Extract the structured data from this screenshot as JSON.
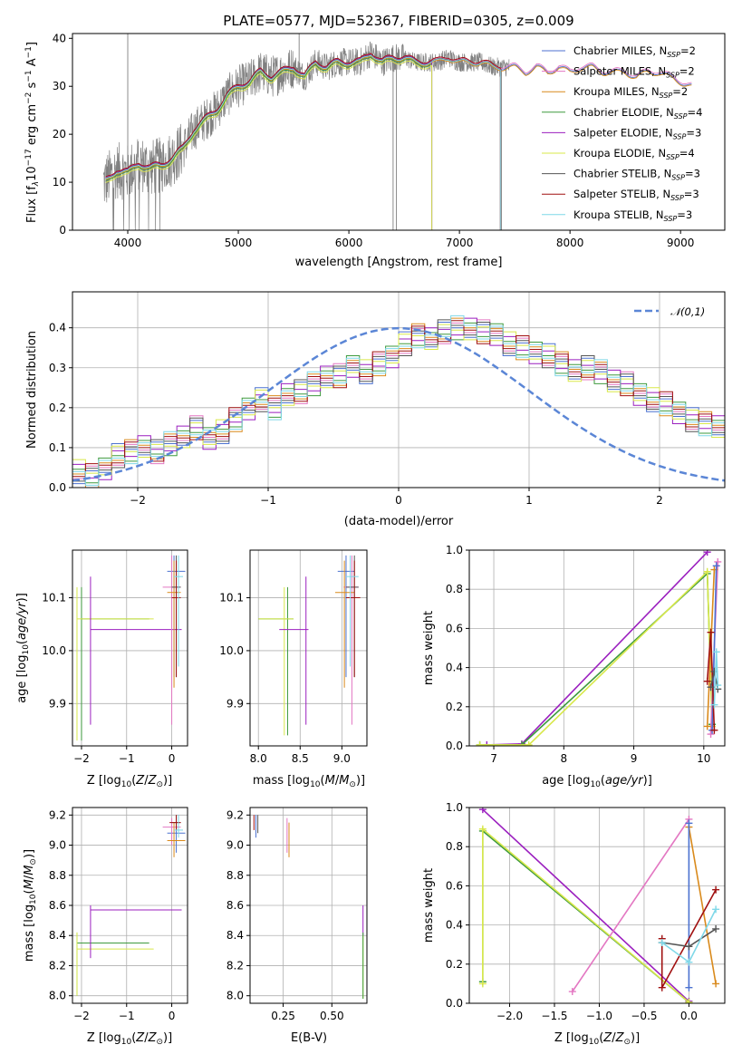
{
  "figure": {
    "title": "PLATE=0577, MJD=52367, FIBERID=0305, z=0.009"
  },
  "colors": {
    "Chabrier MILES": "#4c72d0",
    "Salpeter MILES": "#e377c2",
    "Kroupa MILES": "#d98a1c",
    "Chabrier ELODIE": "#3e9a3e",
    "Salpeter ELODIE": "#9b1fbf",
    "Kroupa ELODIE": "#d8e84a",
    "Chabrier STELIB": "#555555",
    "Salpeter STELIB": "#a01010",
    "Kroupa STELIB": "#7fd8e8",
    "data": "#808080",
    "gauss": "#5b86d6"
  },
  "chart_data": [
    {
      "id": "spectrum",
      "type": "line",
      "xlabel": "wavelength [Angstrom, rest frame]",
      "ylabel": "Flux [fλ10⁻¹⁷ erg cm⁻² s⁻¹ A⁻¹]",
      "xlim": [
        3500,
        9400
      ],
      "ylim": [
        0,
        41
      ],
      "xticks": [
        4000,
        5000,
        6000,
        7000,
        8000,
        9000
      ],
      "yticks": [
        0,
        10,
        20,
        30,
        40
      ],
      "grid": false,
      "legend_position": "top-right",
      "legend": [
        "Chabrier MILES, NSSP=2",
        "Salpeter MILES, NSSP=2",
        "Kroupa MILES, NSSP=2",
        "Chabrier ELODIE, NSSP=4",
        "Salpeter ELODIE, NSSP=3",
        "Kroupa ELODIE, NSSP=4",
        "Chabrier STELIB, NSSP=3",
        "Salpeter STELIB, NSSP=3",
        "Kroupa STELIB, NSSP=3"
      ],
      "continuum": {
        "wavelength": [
          3790,
          3900,
          4000,
          4100,
          4200,
          4300,
          4400,
          4500,
          4600,
          4700,
          4800,
          4900,
          5000,
          5100,
          5200,
          5300,
          5400,
          5500,
          5600,
          5700,
          5800,
          5900,
          6000,
          6100,
          6200,
          6300,
          6400,
          6500,
          6600,
          6700,
          6800,
          6900,
          7000,
          7100,
          7200,
          7300,
          7400,
          7500,
          7600,
          7700,
          7800,
          7900,
          8000,
          8100,
          8200,
          8300,
          8400,
          8500,
          8600,
          8700,
          8800,
          8900,
          9000,
          9100
        ],
        "flux": [
          10,
          12.5,
          12,
          14,
          13,
          13.5,
          15,
          17,
          21,
          23,
          25,
          28,
          30,
          31,
          33,
          32,
          33,
          34,
          32,
          35,
          34,
          35,
          35,
          35,
          37,
          35,
          36,
          36,
          35,
          35,
          35,
          36,
          35,
          35,
          35,
          34,
          34,
          34,
          33,
          34,
          33,
          34,
          33,
          34,
          34,
          33,
          33,
          33,
          32,
          33,
          33,
          32,
          31,
          30
        ]
      },
      "data_extent": [
        3780,
        7450
      ],
      "model_extents": {
        "ELODIE": [
          3800,
          6750
        ],
        "STELIB": [
          3800,
          7370
        ],
        "MILES": [
          3800,
          9100
        ]
      }
    },
    {
      "id": "residuals",
      "type": "step",
      "xlabel": "(data-model)/error",
      "ylabel": "Normed distribution",
      "xlim": [
        -2.5,
        2.5
      ],
      "ylim": [
        0,
        0.49
      ],
      "xticks": [
        -2,
        -1,
        0,
        1,
        2
      ],
      "yticks": [
        0.0,
        0.1,
        0.2,
        0.3,
        0.4
      ],
      "grid": true,
      "legend_position": "top-right",
      "legend": [
        "𝒩(0,1)"
      ],
      "bin_width": 0.1,
      "bin_start": -2.5,
      "histogram_base": [
        0.04,
        0.03,
        0.05,
        0.08,
        0.09,
        0.1,
        0.09,
        0.11,
        0.13,
        0.15,
        0.12,
        0.14,
        0.17,
        0.2,
        0.22,
        0.2,
        0.23,
        0.24,
        0.26,
        0.28,
        0.28,
        0.3,
        0.29,
        0.31,
        0.33,
        0.36,
        0.38,
        0.37,
        0.39,
        0.4,
        0.4,
        0.39,
        0.38,
        0.36,
        0.35,
        0.34,
        0.33,
        0.31,
        0.29,
        0.3,
        0.29,
        0.27,
        0.26,
        0.23,
        0.22,
        0.21,
        0.19,
        0.17,
        0.16,
        0.15,
        0.14,
        0.15,
        0.13,
        0.12,
        0.11,
        0.1,
        0.09,
        0.08,
        0.06,
        0.06,
        0.07,
        0.08,
        0.08,
        0.09,
        0.06,
        0.06,
        0.05,
        0.04
      ]
    },
    {
      "id": "age-vs-Z",
      "type": "errorbar",
      "xlabel": "Z [log10(Z/Z⊙)]",
      "ylabel": "age [log10(age/yr)]",
      "xlim": [
        -2.2,
        0.35
      ],
      "ylim": [
        9.82,
        10.19
      ],
      "xticks": [
        -2,
        -1,
        0
      ],
      "yticks": [
        9.9,
        10.0,
        10.1
      ],
      "grid": true,
      "points": [
        {
          "model": "Chabrier ELODIE",
          "x": -2.0,
          "xlo": -2.0,
          "xhi": -0.5,
          "y": 10.06,
          "ylo": 9.83,
          "yhi": 10.12
        },
        {
          "model": "Kroupa ELODIE",
          "x": -2.1,
          "xlo": -2.1,
          "xhi": -0.4,
          "y": 10.06,
          "ylo": 9.83,
          "yhi": 10.12
        },
        {
          "model": "Salpeter ELODIE",
          "x": -1.8,
          "xlo": -1.8,
          "xhi": 0.22,
          "y": 10.04,
          "ylo": 9.86,
          "yhi": 10.14
        },
        {
          "model": "Chabrier MILES",
          "x": 0.05,
          "xlo": -0.1,
          "xhi": 0.3,
          "y": 10.15,
          "ylo": 9.95,
          "yhi": 10.18
        },
        {
          "model": "Salpeter MILES",
          "x": 0.0,
          "xlo": -0.2,
          "xhi": 0.2,
          "y": 10.12,
          "ylo": 9.86,
          "yhi": 10.18
        },
        {
          "model": "Kroupa MILES",
          "x": 0.05,
          "xlo": -0.1,
          "xhi": 0.2,
          "y": 10.11,
          "ylo": 9.93,
          "yhi": 10.17
        },
        {
          "model": "Chabrier STELIB",
          "x": 0.1,
          "xlo": 0.0,
          "xhi": 0.2,
          "y": 10.12,
          "ylo": 9.95,
          "yhi": 10.18
        },
        {
          "model": "Salpeter STELIB",
          "x": 0.1,
          "xlo": 0.0,
          "xhi": 0.2,
          "y": 10.1,
          "ylo": 9.95,
          "yhi": 10.17
        },
        {
          "model": "Kroupa STELIB",
          "x": 0.15,
          "xlo": 0.05,
          "xhi": 0.25,
          "y": 10.14,
          "ylo": 9.97,
          "yhi": 10.18
        }
      ]
    },
    {
      "id": "age-vs-mass",
      "type": "errorbar",
      "xlabel": "mass [log10(M/M⊙)]",
      "ylabel": "",
      "xlim": [
        7.9,
        9.3
      ],
      "ylim": [
        9.82,
        10.19
      ],
      "xticks": [
        8.0,
        8.5,
        9.0
      ],
      "yticks": [
        9.9,
        10.0,
        10.1
      ],
      "grid": true,
      "points": [
        {
          "model": "Chabrier ELODIE",
          "x": 8.35,
          "xlo": 8.0,
          "xhi": 8.42,
          "y": 10.06,
          "ylo": 9.84,
          "yhi": 10.12
        },
        {
          "model": "Kroupa ELODIE",
          "x": 8.31,
          "xlo": 8.0,
          "xhi": 8.42,
          "y": 10.06,
          "ylo": 9.84,
          "yhi": 10.12
        },
        {
          "model": "Salpeter ELODIE",
          "x": 8.57,
          "xlo": 8.25,
          "xhi": 8.6,
          "y": 10.04,
          "ylo": 9.86,
          "yhi": 10.14
        },
        {
          "model": "Chabrier MILES",
          "x": 9.05,
          "xlo": 8.95,
          "xhi": 9.15,
          "y": 10.15,
          "ylo": 9.95,
          "yhi": 10.18
        },
        {
          "model": "Salpeter MILES",
          "x": 9.12,
          "xlo": 9.02,
          "xhi": 9.2,
          "y": 10.12,
          "ylo": 9.86,
          "yhi": 10.18
        },
        {
          "model": "Kroupa MILES",
          "x": 9.03,
          "xlo": 8.92,
          "xhi": 9.15,
          "y": 10.11,
          "ylo": 9.93,
          "yhi": 10.17
        },
        {
          "model": "Chabrier STELIB",
          "x": 9.15,
          "xlo": 9.05,
          "xhi": 9.2,
          "y": 10.12,
          "ylo": 9.95,
          "yhi": 10.18
        },
        {
          "model": "Salpeter STELIB",
          "x": 9.15,
          "xlo": 9.05,
          "xhi": 9.22,
          "y": 10.1,
          "ylo": 9.95,
          "yhi": 10.17
        },
        {
          "model": "Kroupa STELIB",
          "x": 9.1,
          "xlo": 9.05,
          "xhi": 9.2,
          "y": 10.14,
          "ylo": 9.97,
          "yhi": 10.18
        }
      ]
    },
    {
      "id": "weight-vs-age",
      "type": "line",
      "xlabel": "age [log10(age/yr)]",
      "ylabel": "mass weight",
      "xlim": [
        6.65,
        10.3
      ],
      "ylim": [
        0,
        1.0
      ],
      "xticks": [
        7,
        8,
        9,
        10
      ],
      "yticks": [
        0.0,
        0.2,
        0.4,
        0.6,
        0.8,
        1.0
      ],
      "grid": true,
      "series": [
        {
          "model": "Salpeter ELODIE",
          "x": [
            6.9,
            7.4,
            10.05
          ],
          "y": [
            0.005,
            0.01,
            0.99
          ]
        },
        {
          "model": "Chabrier ELODIE",
          "x": [
            6.8,
            7.4,
            10.05,
            10.12
          ],
          "y": [
            0.005,
            0.005,
            0.88,
            0.11
          ]
        },
        {
          "model": "Kroupa ELODIE",
          "x": [
            6.8,
            7.5,
            10.05,
            10.12
          ],
          "y": [
            0.005,
            0.005,
            0.89,
            0.1
          ]
        },
        {
          "model": "Salpeter MILES",
          "x": [
            10.1,
            10.2
          ],
          "y": [
            0.06,
            0.94
          ]
        },
        {
          "model": "Kroupa MILES",
          "x": [
            10.05,
            10.15
          ],
          "y": [
            0.1,
            0.9
          ]
        },
        {
          "model": "Chabrier MILES",
          "x": [
            10.12,
            10.18
          ],
          "y": [
            0.08,
            0.92
          ]
        },
        {
          "model": "Salpeter STELIB",
          "x": [
            10.05,
            10.1,
            10.15
          ],
          "y": [
            0.33,
            0.58,
            0.08
          ]
        },
        {
          "model": "Chabrier STELIB",
          "x": [
            10.1,
            10.15,
            10.2
          ],
          "y": [
            0.3,
            0.38,
            0.29
          ]
        },
        {
          "model": "Kroupa STELIB",
          "x": [
            10.15,
            10.18,
            10.2
          ],
          "y": [
            0.21,
            0.48,
            0.31
          ]
        }
      ]
    },
    {
      "id": "mass-vs-Z",
      "type": "errorbar",
      "xlabel": "Z [log10(Z/Z⊙)]",
      "ylabel": "mass [log10(M/M⊙)]",
      "xlim": [
        -2.2,
        0.35
      ],
      "ylim": [
        7.95,
        9.25
      ],
      "xticks": [
        -2,
        -1,
        0
      ],
      "yticks": [
        8.0,
        8.2,
        8.4,
        8.6,
        8.8,
        9.0,
        9.2
      ],
      "grid": true,
      "points": [
        {
          "model": "Chabrier ELODIE",
          "x": -2.1,
          "xlo": -2.1,
          "xhi": -0.5,
          "y": 8.35,
          "ylo": 8.0,
          "yhi": 8.42
        },
        {
          "model": "Kroupa ELODIE",
          "x": -2.1,
          "xlo": -2.1,
          "xhi": -0.4,
          "y": 8.31,
          "ylo": 8.0,
          "yhi": 8.42
        },
        {
          "model": "Salpeter ELODIE",
          "x": -1.8,
          "xlo": -1.8,
          "xhi": 0.22,
          "y": 8.57,
          "ylo": 8.25,
          "yhi": 8.6
        },
        {
          "model": "Chabrier MILES",
          "x": 0.1,
          "xlo": -0.1,
          "xhi": 0.3,
          "y": 9.08,
          "ylo": 8.95,
          "yhi": 9.15
        },
        {
          "model": "Salpeter MILES",
          "x": 0.0,
          "xlo": -0.2,
          "xhi": 0.2,
          "y": 9.12,
          "ylo": 9.0,
          "yhi": 9.18
        },
        {
          "model": "Kroupa MILES",
          "x": 0.05,
          "xlo": -0.1,
          "xhi": 0.3,
          "y": 9.03,
          "ylo": 8.92,
          "yhi": 9.15
        },
        {
          "model": "Chabrier STELIB",
          "x": 0.1,
          "xlo": 0.0,
          "xhi": 0.2,
          "y": 9.15,
          "ylo": 9.1,
          "yhi": 9.2
        },
        {
          "model": "Salpeter STELIB",
          "x": 0.1,
          "xlo": -0.05,
          "xhi": 0.2,
          "y": 9.15,
          "ylo": 9.1,
          "yhi": 9.2
        },
        {
          "model": "Kroupa STELIB",
          "x": 0.15,
          "xlo": 0.05,
          "xhi": 0.25,
          "y": 9.1,
          "ylo": 9.05,
          "yhi": 9.2
        }
      ]
    },
    {
      "id": "mass-vs-EBV",
      "type": "errorbar",
      "xlabel": "E(B-V)",
      "ylabel": "",
      "xlim": [
        0.08,
        0.68
      ],
      "ylim": [
        7.95,
        9.25
      ],
      "xticks": [
        0.25,
        0.5
      ],
      "ytick_labels_shown": [
        8.0,
        8.2,
        8.4,
        8.6,
        8.8,
        9.0,
        9.2
      ],
      "grid": true,
      "points": [
        {
          "model": "Chabrier MILES",
          "x": 0.11,
          "y": 9.15,
          "ylo": 9.05,
          "yhi": 9.2
        },
        {
          "model": "Chabrier STELIB",
          "x": 0.12,
          "y": 9.15,
          "ylo": 9.08,
          "yhi": 9.2
        },
        {
          "model": "Salpeter STELIB",
          "x": 0.1,
          "y": 9.15,
          "ylo": 9.1,
          "yhi": 9.2
        },
        {
          "model": "Kroupa MILES",
          "x": 0.28,
          "y": 9.03,
          "ylo": 8.92,
          "yhi": 9.15
        },
        {
          "model": "Salpeter MILES",
          "x": 0.27,
          "y": 9.12,
          "ylo": 8.95,
          "yhi": 9.18
        },
        {
          "model": "Salpeter ELODIE",
          "x": 0.66,
          "y": 8.57,
          "ylo": 8.4,
          "yhi": 8.6
        },
        {
          "model": "Kroupa ELODIE",
          "x": 0.66,
          "y": 8.31,
          "ylo": 7.98,
          "yhi": 8.4
        },
        {
          "model": "Chabrier ELODIE",
          "x": 0.66,
          "y": 8.35,
          "ylo": 7.98,
          "yhi": 8.42
        }
      ]
    },
    {
      "id": "weight-vs-Z",
      "type": "line",
      "xlabel": "Z [log10(Z/Z⊙)]",
      "ylabel": "mass weight",
      "xlim": [
        -2.45,
        0.4
      ],
      "ylim": [
        0,
        1.0
      ],
      "xticks": [
        -2.0,
        -1.5,
        -1.0,
        -0.5,
        0.0
      ],
      "yticks": [
        0.0,
        0.2,
        0.4,
        0.6,
        0.8,
        1.0
      ],
      "grid": true,
      "series": [
        {
          "model": "Salpeter ELODIE",
          "x": [
            -2.3,
            0.0
          ],
          "y": [
            0.99,
            0.01
          ]
        },
        {
          "model": "Chabrier ELODIE",
          "x": [
            -2.3,
            -2.3,
            0.0
          ],
          "y": [
            0.11,
            0.88,
            0.005
          ]
        },
        {
          "model": "Kroupa ELODIE",
          "x": [
            -2.3,
            -2.3,
            0.0
          ],
          "y": [
            0.1,
            0.89,
            0.005
          ]
        },
        {
          "model": "Salpeter MILES",
          "x": [
            -1.3,
            0.0
          ],
          "y": [
            0.06,
            0.94
          ]
        },
        {
          "model": "Kroupa MILES",
          "x": [
            0.0,
            0.3
          ],
          "y": [
            0.9,
            0.1
          ]
        },
        {
          "model": "Chabrier MILES",
          "x": [
            0.0,
            0.0
          ],
          "y": [
            0.08,
            0.92
          ]
        },
        {
          "model": "Salpeter STELIB",
          "x": [
            -0.3,
            -0.3,
            0.3
          ],
          "y": [
            0.33,
            0.08,
            0.58
          ]
        },
        {
          "model": "Chabrier STELIB",
          "x": [
            -0.3,
            0.0,
            0.3
          ],
          "y": [
            0.31,
            0.29,
            0.38
          ]
        },
        {
          "model": "Kroupa STELIB",
          "x": [
            -0.3,
            0.0,
            0.3
          ],
          "y": [
            0.31,
            0.21,
            0.48
          ]
        }
      ]
    }
  ]
}
